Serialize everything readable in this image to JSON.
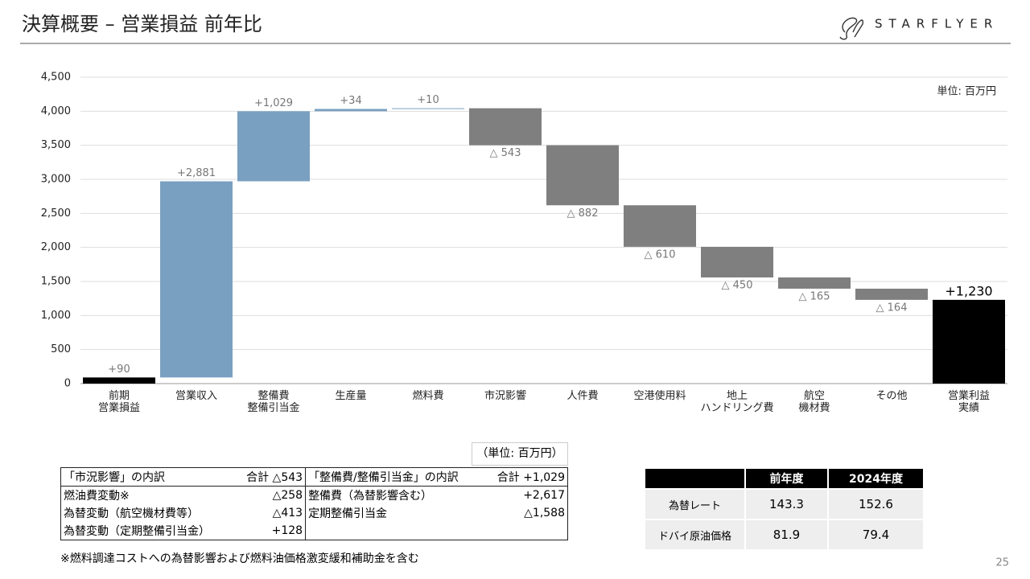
{
  "header": {
    "title": "決算概要 – 営業損益 前年比",
    "logo": "STARFLYER",
    "page_number": "25"
  },
  "chart_data": {
    "type": "waterfall",
    "unit_label": "単位: 百万円",
    "categories": [
      "前期\n営業損益",
      "営業収入",
      "整備費\n整備引当金",
      "生産量",
      "燃料費",
      "市況影響",
      "人件費",
      "空港使用料",
      "地上\nハンドリング費",
      "航空\n機材費",
      "その他",
      "営業利益\n実績"
    ],
    "measures": [
      "absolute",
      "relative",
      "relative",
      "relative",
      "relative",
      "relative",
      "relative",
      "relative",
      "relative",
      "relative",
      "relative",
      "total"
    ],
    "values": [
      90,
      2881,
      1029,
      34,
      10,
      -543,
      -882,
      -610,
      -450,
      -165,
      -164,
      1230
    ],
    "value_labels": [
      "+90",
      "+2,881",
      "+1,029",
      "+34",
      "+10",
      "△ 543",
      "△ 882",
      "△ 610",
      "△ 450",
      "△ 165",
      "△ 164",
      "+1,230"
    ],
    "colors": {
      "total": "#000000",
      "increase": "#7aa0c1",
      "decrease": "#7f7f7f"
    },
    "ylim": [
      0,
      4500
    ],
    "yticks": [
      0,
      500,
      {
        "value": 1000,
        "label": "1,000"
      },
      {
        "value": 1500,
        "label": "1,500"
      },
      {
        "value": 2000,
        "label": "2,000"
      },
      {
        "value": 2500,
        "label": "2,500"
      },
      {
        "value": 3000,
        "label": "3,000"
      },
      {
        "value": 3500,
        "label": "3,500"
      },
      {
        "value": 4000,
        "label": "4,000"
      },
      {
        "value": 4500,
        "label": "4,500"
      }
    ],
    "grid": true
  },
  "breakdown_table": {
    "unit": "（単位: 百万円）",
    "header": [
      "「市況影響」の内訳",
      "合計 △543",
      "「整備費/整備引当金」の内訳",
      "合計 +1,029"
    ],
    "rows": [
      [
        "燃油費変動※",
        "△258",
        "整備費（為替影響含む）",
        "+2,617"
      ],
      [
        "為替変動（航空機材費等）",
        "△413",
        "定期整備引当金",
        "△1,588"
      ],
      [
        "為替変動（定期整備引当金）",
        "+128"
      ]
    ],
    "footnote": "※燃料調達コストへの為替影響および燃料油価格激変緩和補助金を含む"
  },
  "rate_table": {
    "header": [
      "前年度",
      "2024年度"
    ],
    "rows": [
      {
        "label": "為替レート",
        "values": [
          143.3,
          152.6
        ]
      },
      {
        "label": "ドバイ原油価格",
        "values": [
          81.9,
          79.4
        ]
      }
    ]
  }
}
